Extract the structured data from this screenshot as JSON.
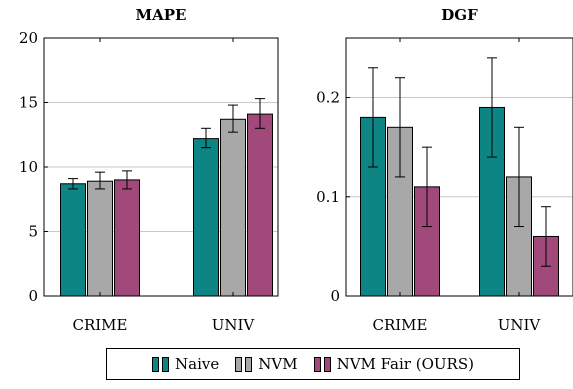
{
  "chart_data": [
    {
      "type": "bar",
      "title": "MAPE",
      "categories": [
        "CRIME",
        "UNIV"
      ],
      "ylim": [
        0,
        20
      ],
      "yticks": [
        "0",
        "5",
        "10",
        "15",
        "20"
      ],
      "ytick_values": [
        0,
        5,
        10,
        15,
        20
      ],
      "grid": true,
      "series": [
        {
          "name": "Naive",
          "values": [
            8.7,
            12.2
          ],
          "err_low": [
            8.3,
            11.5
          ],
          "err_high": [
            9.1,
            13.0
          ]
        },
        {
          "name": "NVM",
          "values": [
            8.9,
            13.7
          ],
          "err_low": [
            8.3,
            12.7
          ],
          "err_high": [
            9.6,
            14.8
          ]
        },
        {
          "name": "NVM Fair (OURS)",
          "values": [
            9.0,
            14.1
          ],
          "err_low": [
            8.3,
            13.0
          ],
          "err_high": [
            9.7,
            15.3
          ]
        }
      ]
    },
    {
      "type": "bar",
      "title": "DGF",
      "categories": [
        "CRIME",
        "UNIV"
      ],
      "ylim": [
        0,
        0.26
      ],
      "yticks": [
        "0",
        "0.1",
        "0.2"
      ],
      "ytick_values": [
        0,
        0.1,
        0.2
      ],
      "grid": true,
      "series": [
        {
          "name": "Naive",
          "values": [
            0.18,
            0.19
          ],
          "err_low": [
            0.13,
            0.14
          ],
          "err_high": [
            0.23,
            0.24
          ]
        },
        {
          "name": "NVM",
          "values": [
            0.17,
            0.12
          ],
          "err_low": [
            0.12,
            0.07
          ],
          "err_high": [
            0.22,
            0.17
          ]
        },
        {
          "name": "NVM Fair (OURS)",
          "values": [
            0.11,
            0.06
          ],
          "err_low": [
            0.07,
            0.03
          ],
          "err_high": [
            0.15,
            0.09
          ]
        }
      ]
    }
  ],
  "colors": {
    "Naive": "#0d8585",
    "NVM": "#a8a8a8",
    "NVM Fair (OURS)": "#a0497a"
  },
  "legend": {
    "placement": "bottom-center",
    "items": [
      "Naive",
      "NVM",
      "NVM Fair (OURS)"
    ]
  }
}
